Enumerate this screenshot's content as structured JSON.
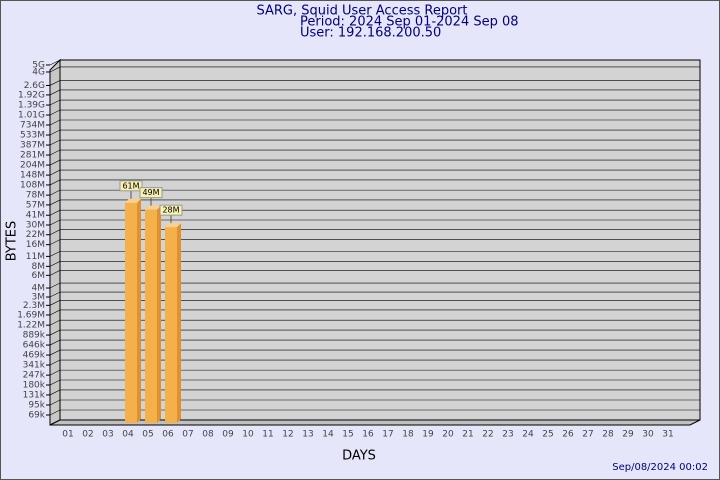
{
  "chart_data": {
    "type": "bar",
    "title": "SARG, Squid User Access Report",
    "subtitle": "Period: 2024 Sep 01-2024 Sep 08",
    "user": "User: 192.168.200.50",
    "x_label": "DAYS",
    "y_label": "BYTES",
    "footer": "Sep/08/2024 00:02",
    "categories": [
      "01",
      "02",
      "03",
      "04",
      "05",
      "06",
      "07",
      "08",
      "09",
      "10",
      "11",
      "12",
      "13",
      "14",
      "15",
      "16",
      "17",
      "18",
      "19",
      "20",
      "21",
      "22",
      "23",
      "24",
      "25",
      "26",
      "27",
      "28",
      "29",
      "30",
      "31"
    ],
    "values": [
      null,
      null,
      null,
      61000000,
      49000000,
      28000000,
      null,
      null,
      null,
      null,
      null,
      null,
      null,
      null,
      null,
      null,
      null,
      null,
      null,
      null,
      null,
      null,
      null,
      null,
      null,
      null,
      null,
      null,
      null,
      null,
      null
    ],
    "value_labels": [
      null,
      null,
      null,
      "61M",
      "49M",
      "28M",
      null,
      null,
      null,
      null,
      null,
      null,
      null,
      null,
      null,
      null,
      null,
      null,
      null,
      null,
      null,
      null,
      null,
      null,
      null,
      null,
      null,
      null,
      null,
      null,
      null
    ],
    "color": "#f4b04a",
    "log_scale": true,
    "grid": true,
    "ylim": [
      69000,
      5000000000
    ],
    "yticks": [
      {
        "value": 69000,
        "label": "69k"
      },
      {
        "value": 95000,
        "label": "95k"
      },
      {
        "value": 131000,
        "label": "131k"
      },
      {
        "value": 180000,
        "label": "180k"
      },
      {
        "value": 247000,
        "label": "247k"
      },
      {
        "value": 341000,
        "label": "341k"
      },
      {
        "value": 469000,
        "label": "469k"
      },
      {
        "value": 646000,
        "label": "646k"
      },
      {
        "value": 889000,
        "label": "889k"
      },
      {
        "value": 1220000,
        "label": "1.22M"
      },
      {
        "value": 1690000,
        "label": "1.69M"
      },
      {
        "value": 2300000,
        "label": "2.3M"
      },
      {
        "value": 3000000,
        "label": "3M"
      },
      {
        "value": 4000000,
        "label": "4M"
      },
      {
        "value": 6000000,
        "label": "6M"
      },
      {
        "value": 8000000,
        "label": "8M"
      },
      {
        "value": 11000000,
        "label": "11M"
      },
      {
        "value": 16000000,
        "label": "16M"
      },
      {
        "value": 22000000,
        "label": "22M"
      },
      {
        "value": 30000000,
        "label": "30M"
      },
      {
        "value": 41000000,
        "label": "41M"
      },
      {
        "value": 57000000,
        "label": "57M"
      },
      {
        "value": 78000000,
        "label": "78M"
      },
      {
        "value": 108000000,
        "label": "108M"
      },
      {
        "value": 148000000,
        "label": "148M"
      },
      {
        "value": 204000000,
        "label": "204M"
      },
      {
        "value": 281000000,
        "label": "281M"
      },
      {
        "value": 387000000,
        "label": "387M"
      },
      {
        "value": 533000000,
        "label": "533M"
      },
      {
        "value": 734000000,
        "label": "734M"
      },
      {
        "value": 1010000000,
        "label": "1.01G"
      },
      {
        "value": 1390000000,
        "label": "1.39G"
      },
      {
        "value": 1920000000,
        "label": "1.92G"
      },
      {
        "value": 2600000000,
        "label": "2.6G"
      },
      {
        "value": 4000000000,
        "label": "4G"
      },
      {
        "value": 5000000000,
        "label": "5G"
      }
    ]
  }
}
